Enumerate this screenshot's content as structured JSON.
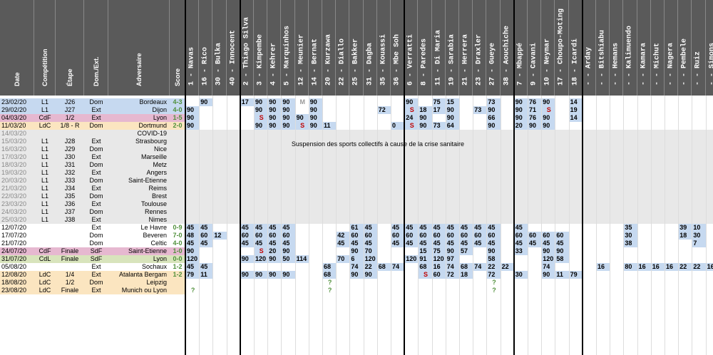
{
  "columns": [
    {
      "key": "date",
      "label": "Date"
    },
    {
      "key": "comp",
      "label": "Compétition"
    },
    {
      "key": "etape",
      "label": "Étape"
    },
    {
      "key": "domext",
      "label": "Dom./Ext."
    },
    {
      "key": "adv",
      "label": "Adversaire"
    },
    {
      "key": "score",
      "label": "Score"
    }
  ],
  "players": [
    {
      "num": "1",
      "name": "Navas"
    },
    {
      "num": "16",
      "name": "Rico"
    },
    {
      "num": "30",
      "name": "Bulka"
    },
    {
      "num": "40",
      "name": "Innocent"
    },
    {
      "num": "2",
      "name": "Thiago Silva"
    },
    {
      "num": "3",
      "name": "Kimpembe"
    },
    {
      "num": "4",
      "name": "Kehrer"
    },
    {
      "num": "5",
      "name": "Marquinhos"
    },
    {
      "num": "12",
      "name": "Meunier"
    },
    {
      "num": "14",
      "name": "Bernat"
    },
    {
      "num": "20",
      "name": "Kurzawa"
    },
    {
      "num": "22",
      "name": "Diallo"
    },
    {
      "num": "25",
      "name": "Bakker"
    },
    {
      "num": "31",
      "name": "Dagba"
    },
    {
      "num": "35",
      "name": "Kouassi"
    },
    {
      "num": "36",
      "name": "Mbe Soh"
    },
    {
      "num": "6",
      "name": "Verratti"
    },
    {
      "num": "8",
      "name": "Paredes"
    },
    {
      "num": "11",
      "name": "Di Maria"
    },
    {
      "num": "19",
      "name": "Sarabia"
    },
    {
      "num": "21",
      "name": "Herrera"
    },
    {
      "num": "23",
      "name": "Draxler"
    },
    {
      "num": "27",
      "name": "Gueye"
    },
    {
      "num": "38",
      "name": "Aouchiche"
    },
    {
      "num": "7",
      "name": "Mbappé"
    },
    {
      "num": "9",
      "name": "Cavani"
    },
    {
      "num": "10",
      "name": "Neymar"
    },
    {
      "num": "17",
      "name": "Choupo-Moting"
    },
    {
      "num": "18",
      "name": "Icardi"
    },
    {
      "num": "-",
      "name": "Arday"
    },
    {
      "num": "-",
      "name": "Bitshiabu"
    },
    {
      "num": "-",
      "name": "Hemans"
    },
    {
      "num": "-",
      "name": "Kalimuendo"
    },
    {
      "num": "-",
      "name": "Kamara"
    },
    {
      "num": "-",
      "name": "Michut"
    },
    {
      "num": "-",
      "name": "Nagera"
    },
    {
      "num": "-",
      "name": "Pembele"
    },
    {
      "num": "-",
      "name": "Ruiz"
    },
    {
      "num": "-",
      "name": "Simons"
    }
  ],
  "suspension_note": "Suspension des sports collectifs à cause de la crise sanitaire",
  "colors": {
    "header": "#5a5a5a",
    "blue": "#c6d9f0",
    "green": "#d8e4bc",
    "yellow": "#ffff00",
    "pink": "#e6b8d0",
    "orange": "#fbe5c0",
    "grey": "#e8e8e8",
    "red": "#c00000",
    "darkgreen": "#4f8f3a",
    "olive": "#b8b800"
  },
  "matches": [
    {
      "date": "23/02/20",
      "comp": "L1",
      "etape": "J26",
      "domext": "Dom",
      "adv": "Bordeaux",
      "score": "4-3",
      "bg": "blue",
      "score_color": "darkgreen",
      "cells": {
        "1": "90",
        "4": "17",
        "5": "90",
        "6": "90",
        "7": "90",
        "8": "M",
        "9": "90",
        "16": "90",
        "18": "75",
        "19": "15",
        "22": "73",
        "24": "90",
        "25": "76",
        "26": "90",
        "28": "14"
      }
    },
    {
      "date": "29/02/20",
      "comp": "L1",
      "etape": "J27",
      "domext": "Ext",
      "adv": "Dijon",
      "score": "4-0",
      "bg": "blue",
      "score_color": "darkgreen",
      "cells": {
        "0": "90",
        "5": "90",
        "6": "90",
        "7": "90",
        "9": "90",
        "14": "72",
        "16": "S",
        "17": "18",
        "18": "17",
        "19": "90",
        "21": "73",
        "22": "90",
        "24": "90",
        "25": "71",
        "26": "S",
        "28": "19"
      }
    },
    {
      "date": "04/03/20",
      "comp": "CdF",
      "etape": "1/2",
      "domext": "Ext",
      "adv": "Lyon",
      "score": "1-5",
      "bg": "pink",
      "score_color": "darkgreen",
      "cells": {
        "0": "90",
        "5": "S",
        "6": "90",
        "7": "90",
        "8": "90",
        "9": "90",
        "16": "24",
        "17": "90",
        "19": "90",
        "22": "66",
        "24": "90",
        "25": "76",
        "26": "90",
        "28": "14"
      }
    },
    {
      "date": "11/03/20",
      "comp": "LdC",
      "etape": "1/8 - R",
      "domext": "Dom",
      "adv": "Dortmund",
      "score": "2-0",
      "bg": "orange",
      "score_color": "darkgreen",
      "cells": {
        "0": "90",
        "5": "90",
        "6": "90",
        "7": "90",
        "8": "S",
        "9": "90",
        "10": "11",
        "15": "0",
        "16": "S",
        "17": "90",
        "18": "73",
        "19": "64",
        "22": "90",
        "24": "20",
        "25": "90",
        "26": "90"
      }
    },
    {
      "date": "14/03/20",
      "comp": "",
      "etape": "",
      "domext": "",
      "adv": "COVID-19",
      "score": "",
      "bg": "grey",
      "cells": {}
    },
    {
      "date": "15/03/20",
      "comp": "L1",
      "etape": "J28",
      "domext": "Ext",
      "adv": "Strasbourg",
      "score": "",
      "bg": "grey",
      "cells": {}
    },
    {
      "date": "16/03/20",
      "comp": "L1",
      "etape": "J29",
      "domext": "Dom",
      "adv": "Nice",
      "score": "",
      "bg": "grey",
      "cells": {}
    },
    {
      "date": "17/03/20",
      "comp": "L1",
      "etape": "J30",
      "domext": "Ext",
      "adv": "Marseille",
      "score": "",
      "bg": "grey",
      "cells": {}
    },
    {
      "date": "18/03/20",
      "comp": "L1",
      "etape": "J31",
      "domext": "Dom",
      "adv": "Metz",
      "score": "",
      "bg": "grey",
      "cells": {}
    },
    {
      "date": "19/03/20",
      "comp": "L1",
      "etape": "J32",
      "domext": "Ext",
      "adv": "Angers",
      "score": "",
      "bg": "grey",
      "cells": {}
    },
    {
      "date": "20/03/20",
      "comp": "L1",
      "etape": "J33",
      "domext": "Dom",
      "adv": "Saint-Etienne",
      "score": "",
      "bg": "grey",
      "cells": {}
    },
    {
      "date": "21/03/20",
      "comp": "L1",
      "etape": "J34",
      "domext": "Ext",
      "adv": "Reims",
      "score": "",
      "bg": "grey",
      "cells": {}
    },
    {
      "date": "22/03/20",
      "comp": "L1",
      "etape": "J35",
      "domext": "Dom",
      "adv": "Brest",
      "score": "",
      "bg": "grey",
      "cells": {}
    },
    {
      "date": "23/03/20",
      "comp": "L1",
      "etape": "J36",
      "domext": "Ext",
      "adv": "Toulouse",
      "score": "",
      "bg": "grey",
      "cells": {}
    },
    {
      "date": "24/03/20",
      "comp": "L1",
      "etape": "J37",
      "domext": "Dom",
      "adv": "Rennes",
      "score": "",
      "bg": "grey",
      "cells": {}
    },
    {
      "date": "25/03/20",
      "comp": "L1",
      "etape": "J38",
      "domext": "Ext",
      "adv": "Nimes",
      "score": "",
      "bg": "grey",
      "cells": {}
    },
    {
      "date": "12/07/20",
      "comp": "",
      "etape": "",
      "domext": "Ext",
      "adv": "Le Havre",
      "score": "0-9",
      "bg": "white",
      "score_color": "darkgreen",
      "cells": {
        "0": "45",
        "1": "45",
        "4": "45",
        "5": "45",
        "6": "45",
        "7": "45",
        "12": "61",
        "13": "45",
        "15": "45",
        "16": "45",
        "17": "45",
        "18": "45",
        "19": "45",
        "20": "45",
        "21": "45",
        "22": "45",
        "24": "45",
        "32": "35",
        "36": "39",
        "37": "10"
      }
    },
    {
      "date": "17/07/20",
      "comp": "",
      "etape": "",
      "domext": "Dom",
      "adv": "Beveren",
      "score": "7-0",
      "bg": "white",
      "score_color": "darkgreen",
      "cells": {
        "0": "48",
        "1": "60",
        "2": "12",
        "4": "60",
        "5": "60",
        "6": "60",
        "7": "60",
        "11": "42",
        "12": "60",
        "13": "60",
        "15": "60",
        "16": "60",
        "17": "60",
        "18": "60",
        "19": "60",
        "20": "60",
        "21": "60",
        "22": "60",
        "24": "60",
        "25": "60",
        "26": "60",
        "27": "60",
        "32": "30",
        "36": "18",
        "37": "30"
      }
    },
    {
      "date": "21/07/20",
      "comp": "",
      "etape": "",
      "domext": "Dom",
      "adv": "Celtic",
      "score": "4-0",
      "bg": "white",
      "score_color": "darkgreen",
      "cells": {
        "0": "45",
        "1": "45",
        "4": "45",
        "5": "45",
        "6": "45",
        "7": "45",
        "11": "45",
        "12": "45",
        "13": "45",
        "15": "45",
        "16": "45",
        "17": "45",
        "18": "45",
        "19": "45",
        "20": "45",
        "21": "45",
        "22": "45",
        "24": "45",
        "25": "45",
        "26": "45",
        "27": "45",
        "32": "38",
        "37": "7"
      }
    },
    {
      "date": "24/07/20",
      "comp": "CdF",
      "etape": "Finale",
      "domext": "SdF",
      "adv": "Saint-Etienne",
      "score": "1-0",
      "bg": "pink",
      "score_color": "darkgreen",
      "cells": {
        "0": "90",
        "5": "S",
        "6": "20",
        "7": "90",
        "12": "90",
        "13": "70",
        "17": "15",
        "18": "75",
        "19": "90",
        "20": "57",
        "22": "90",
        "24": "33",
        "26": "90",
        "27": "90"
      }
    },
    {
      "date": "31/07/20",
      "comp": "CdL",
      "etape": "Finale",
      "domext": "SdF",
      "adv": "Lyon",
      "score": "0-0",
      "bg": "green",
      "score_color": "darkgreen",
      "cells": {
        "0": "120",
        "4": "90",
        "5": "120",
        "6": "90",
        "7": "50",
        "8": "114",
        "11": "70",
        "12": "6",
        "13": "120",
        "16": "120",
        "17": "91",
        "18": "120",
        "19": "97",
        "22": "58",
        "26": "120",
        "27": "58"
      }
    },
    {
      "date": "05/08/20",
      "comp": "",
      "etape": "",
      "domext": "Ext",
      "adv": "Sochaux",
      "score": "1-2",
      "bg": "white",
      "score_color": "darkgreen",
      "cells": {
        "0": "45",
        "1": "45",
        "10": "68",
        "12": "74",
        "13": "22",
        "14": "68",
        "15": "74",
        "17": "68",
        "18": "16",
        "19": "74",
        "20": "68",
        "21": "74",
        "22": "22",
        "23": "22",
        "26": "74",
        "30": "16",
        "32": "80",
        "33": "16",
        "34": "16",
        "35": "16",
        "36": "22",
        "37": "22",
        "38": "16"
      }
    },
    {
      "date": "12/08/20",
      "comp": "LdC",
      "etape": "1/4",
      "domext": "Ext",
      "adv": "Atalanta Bergam",
      "score": "1-2",
      "bg": "orange",
      "score_color": "darkgreen",
      "cells": {
        "0": "79",
        "1": "11",
        "4": "90",
        "5": "90",
        "6": "90",
        "7": "90",
        "10": "68",
        "12": "90",
        "13": "90",
        "17": "S",
        "18": "60",
        "19": "72",
        "20": "18",
        "22": "72",
        "24": "30",
        "26": "90",
        "27": "11",
        "28": "79"
      }
    },
    {
      "date": "18/08/20",
      "comp": "LdC",
      "etape": "1/2",
      "domext": "Dom",
      "adv": "Leipzig",
      "score": "",
      "bg": "orange",
      "cells": {
        "10": "?",
        "22": "?"
      }
    },
    {
      "date": "23/08/20",
      "comp": "LdC",
      "etape": "Finale",
      "domext": "Ext",
      "adv": "Munich ou Lyon",
      "score": "",
      "bg": "orange",
      "cells": {
        "0": "?",
        "10": "?",
        "22": "?"
      }
    }
  ]
}
